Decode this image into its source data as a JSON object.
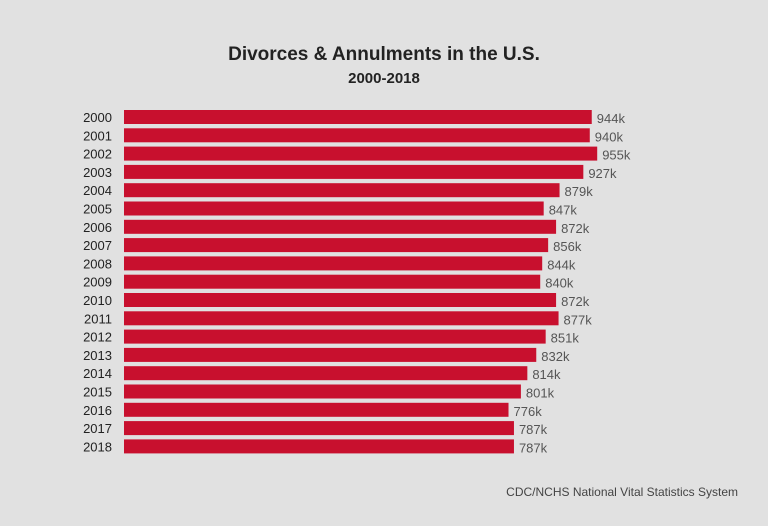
{
  "chart_data": {
    "type": "bar",
    "orientation": "horizontal",
    "title": "Divorces & Annulments in the U.S.",
    "subtitle": "2000-2018",
    "source": "CDC/NCHS National Vital Statistics System",
    "categories": [
      "2000",
      "2001",
      "2002",
      "2003",
      "2004",
      "2005",
      "2006",
      "2007",
      "2008",
      "2009",
      "2010",
      "2011",
      "2012",
      "2013",
      "2014",
      "2015",
      "2016",
      "2017",
      "2018"
    ],
    "values": [
      944,
      940,
      955,
      927,
      879,
      847,
      872,
      856,
      844,
      840,
      872,
      877,
      851,
      832,
      814,
      801,
      776,
      787,
      787
    ],
    "value_unit": "k",
    "data_labels": [
      "944k",
      "940k",
      "955k",
      "927k",
      "879k",
      "847k",
      "872k",
      "856k",
      "844k",
      "840k",
      "872k",
      "877k",
      "851k",
      "832k",
      "814k",
      "801k",
      "776k",
      "787k",
      "787k"
    ],
    "bar_color": "#c8102e",
    "background": "#e1e1e1",
    "grid": false
  }
}
